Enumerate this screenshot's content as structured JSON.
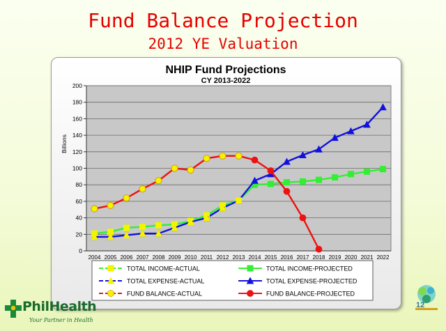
{
  "slide": {
    "title": "Fund Balance Projection",
    "subtitle": "2012 YE Valuation",
    "page_number": "12",
    "logo_text": "PhilHealth",
    "logo_tagline": "Your Partner in Health"
  },
  "colors": {
    "income": "#33ee33",
    "expense": "#1111dd",
    "fund": "#ee1111",
    "actual_marker": "#f4f400",
    "title_red": "#e60000"
  },
  "chart_data": {
    "type": "line",
    "title": "NHIP Fund Projections",
    "subtitle": "CY 2013-2022",
    "ylabel": "Billions",
    "xlabel": "",
    "ylim": [
      0,
      200
    ],
    "yticks": [
      0,
      20,
      40,
      60,
      80,
      100,
      120,
      140,
      160,
      180,
      200
    ],
    "x": [
      "2004",
      "2005",
      "2006",
      "2007",
      "2008",
      "2009",
      "2010",
      "2011",
      "2012",
      "2013",
      "2014",
      "2015",
      "2016",
      "2017",
      "2018",
      "2019",
      "2020",
      "2021",
      "2022"
    ],
    "grid": true,
    "legend_position": "bottom",
    "series": [
      {
        "name": "TOTAL INCOME-ACTUAL",
        "kind": "income",
        "dash": "actual",
        "x": [
          "2004",
          "2005",
          "2006",
          "2007",
          "2008",
          "2009",
          "2010",
          "2011",
          "2012",
          "2013"
        ],
        "values": [
          21,
          23,
          28,
          29,
          31,
          32,
          36,
          43,
          55,
          61
        ]
      },
      {
        "name": "TOTAL INCOME-PROJECTED",
        "kind": "income",
        "dash": "projected",
        "x": [
          "2004",
          "2005",
          "2006",
          "2007",
          "2008",
          "2009",
          "2010",
          "2011",
          "2012",
          "2013",
          "2014",
          "2015",
          "2016",
          "2017",
          "2018",
          "2019",
          "2020",
          "2021",
          "2022"
        ],
        "values": [
          21,
          23,
          28,
          29,
          31,
          32,
          36,
          43,
          55,
          61,
          80,
          81,
          83,
          84,
          86,
          89,
          93,
          96,
          99
        ]
      },
      {
        "name": "TOTAL EXPENSE-ACTUAL",
        "kind": "expense",
        "dash": "actual",
        "x": [
          "2004",
          "2005",
          "2006",
          "2007",
          "2008",
          "2009",
          "2010",
          "2011",
          "2012",
          "2013"
        ],
        "values": [
          17,
          17,
          19,
          21,
          21,
          28,
          35,
          40,
          52,
          61
        ]
      },
      {
        "name": "TOTAL EXPENSE-PROJECTED",
        "kind": "expense",
        "dash": "projected",
        "x": [
          "2004",
          "2005",
          "2006",
          "2007",
          "2008",
          "2009",
          "2010",
          "2011",
          "2012",
          "2013",
          "2014",
          "2015",
          "2016",
          "2017",
          "2018",
          "2019",
          "2020",
          "2021",
          "2022"
        ],
        "values": [
          17,
          17,
          19,
          21,
          21,
          28,
          35,
          40,
          52,
          61,
          85,
          93,
          108,
          116,
          123,
          137,
          145,
          153,
          174
        ]
      },
      {
        "name": "FUND BALANCE-ACTUAL",
        "kind": "fund",
        "dash": "actual",
        "x": [
          "2004",
          "2005",
          "2006",
          "2007",
          "2008",
          "2009",
          "2010",
          "2011",
          "2012",
          "2013"
        ],
        "values": [
          51,
          55,
          64,
          75,
          85,
          100,
          98,
          112,
          115,
          115
        ]
      },
      {
        "name": "FUND BALANCE-PROJECTED",
        "kind": "fund",
        "dash": "projected",
        "x": [
          "2004",
          "2005",
          "2006",
          "2007",
          "2008",
          "2009",
          "2010",
          "2011",
          "2012",
          "2013",
          "2014",
          "2015",
          "2016",
          "2017",
          "2018"
        ],
        "values": [
          51,
          55,
          64,
          75,
          85,
          100,
          98,
          112,
          115,
          115,
          110,
          97,
          72,
          40,
          2
        ]
      }
    ]
  }
}
